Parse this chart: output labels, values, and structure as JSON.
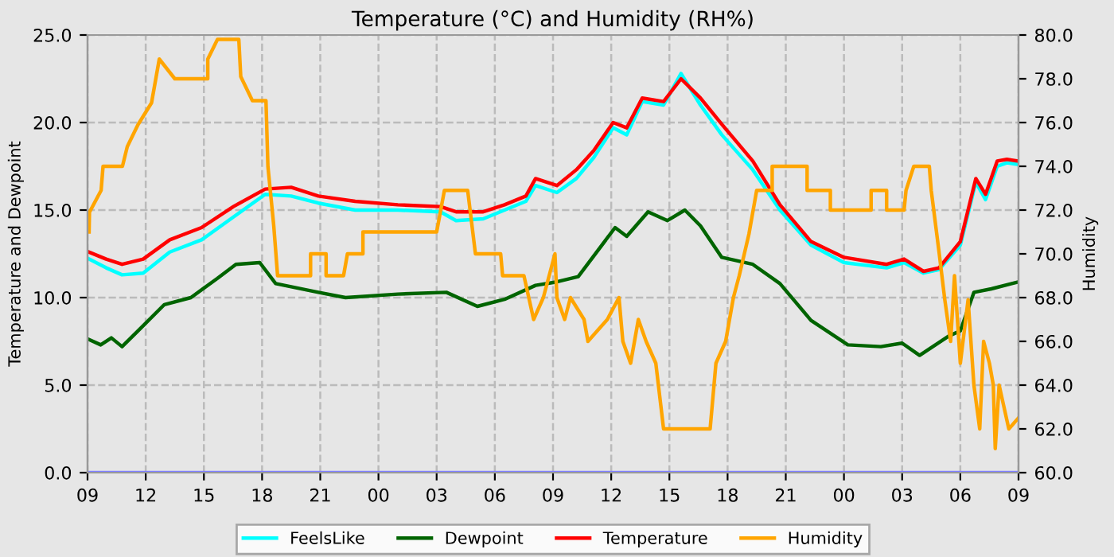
{
  "chart_data": {
    "type": "line",
    "title": "Temperature (°C) and Humidity (RH%)",
    "ylabel": "Temperature and Dewpoint",
    "y2label": "Humidity",
    "xlim": [
      9,
      57
    ],
    "xticks": [
      {
        "value": 9,
        "label": "09"
      },
      12,
      15,
      18,
      21,
      {
        "value": 24,
        "label": "00"
      },
      {
        "value": 27,
        "label": "03"
      },
      {
        "value": 30,
        "label": "06"
      },
      {
        "value": 33,
        "label": "09"
      },
      {
        "value": 36,
        "label": "12"
      },
      {
        "value": 39,
        "label": "15"
      },
      {
        "value": 42,
        "label": "18"
      },
      {
        "value": 45,
        "label": "21"
      },
      {
        "value": 48,
        "label": "00"
      },
      {
        "value": 51,
        "label": "03"
      },
      {
        "value": 54,
        "label": "06"
      },
      {
        "value": 57,
        "label": "09"
      }
    ],
    "ylim": [
      0,
      25
    ],
    "yticks": [
      {
        "value": 0,
        "label": "0.0"
      },
      {
        "value": 5,
        "label": "5.0"
      },
      {
        "value": 10,
        "label": "10.0"
      },
      {
        "value": 15,
        "label": "15.0"
      },
      {
        "value": 20,
        "label": "20.0"
      },
      {
        "value": 25,
        "label": "25.0"
      }
    ],
    "y2lim": [
      60,
      80
    ],
    "y2ticks": [
      {
        "value": 60,
        "label": "60.0"
      },
      {
        "value": 62,
        "label": "62.0"
      },
      {
        "value": 64,
        "label": "64.0"
      },
      {
        "value": 66,
        "label": "66.0"
      },
      {
        "value": 68,
        "label": "68.0"
      },
      {
        "value": 70,
        "label": "70.0"
      },
      {
        "value": 72,
        "label": "72.0"
      },
      {
        "value": 74,
        "label": "74.0"
      },
      {
        "value": 76,
        "label": "76.0"
      },
      {
        "value": 78,
        "label": "78.0"
      },
      {
        "value": 80,
        "label": "80.0"
      }
    ],
    "grid": true,
    "legend": "bottom",
    "line_style": "solid",
    "marker": "none",
    "series": [
      {
        "name": "FeelsLike",
        "color": "#00ffff",
        "x": [
          9.08,
          9.96,
          10.78,
          11.87,
          13.24,
          14.88,
          16.52,
          18.16,
          19.5,
          20.9,
          22.8,
          25.0,
          27.2,
          28.0,
          29.4,
          30.5,
          31.6,
          32.1,
          33.2,
          34.2,
          35.1,
          36.1,
          36.8,
          37.6,
          38.7,
          39.6,
          40.6,
          41.7,
          43.3,
          44.7,
          46.3,
          48.0,
          50.2,
          51.1,
          52.1,
          52.9,
          54.0,
          54.8,
          55.3,
          55.9,
          56.4,
          57
        ],
        "values": [
          12.2,
          11.7,
          11.3,
          11.4,
          12.6,
          13.3,
          14.6,
          15.9,
          15.8,
          15.4,
          15.0,
          15.0,
          14.9,
          14.4,
          14.5,
          15.0,
          15.5,
          16.4,
          16.0,
          16.8,
          18.0,
          19.7,
          19.3,
          21.2,
          21.0,
          22.8,
          21.0,
          19.3,
          17.3,
          15.0,
          13.0,
          12.0,
          11.7,
          12.0,
          11.4,
          11.6,
          13.0,
          16.6,
          15.6,
          17.5,
          17.7,
          17.6
        ]
      },
      {
        "name": "Dewpoint",
        "color": "#006400",
        "x": [
          9.08,
          9.68,
          10.23,
          10.78,
          11.6,
          12.96,
          14.33,
          15.7,
          16.65,
          17.88,
          18.7,
          20.9,
          22.3,
          25.0,
          27.5,
          29.1,
          30.5,
          32.1,
          33.2,
          34.3,
          36.2,
          36.8,
          37.9,
          38.9,
          39.8,
          40.6,
          41.7,
          43.3,
          44.7,
          46.3,
          48.2,
          49.9,
          51.0,
          51.9,
          53.4,
          54.0,
          54.7,
          55.6,
          57
        ],
        "values": [
          7.6,
          7.3,
          7.7,
          7.2,
          8.1,
          9.6,
          10.0,
          11.1,
          11.9,
          12.0,
          10.8,
          10.3,
          10.0,
          10.2,
          10.3,
          9.5,
          9.9,
          10.7,
          10.9,
          11.2,
          14.0,
          13.5,
          14.9,
          14.4,
          15.0,
          14.1,
          12.3,
          11.9,
          10.8,
          8.7,
          7.3,
          7.2,
          7.4,
          6.7,
          7.8,
          8.1,
          10.3,
          10.5,
          10.9
        ]
      },
      {
        "name": "Temperature",
        "color": "#ff0000",
        "x": [
          9.08,
          9.96,
          10.78,
          11.87,
          13.24,
          14.88,
          16.52,
          18.16,
          19.5,
          20.9,
          22.8,
          25.0,
          27.2,
          28.0,
          29.4,
          30.5,
          31.6,
          32.1,
          33.2,
          34.2,
          35.1,
          36.1,
          36.8,
          37.6,
          38.7,
          39.6,
          40.6,
          41.7,
          43.3,
          44.7,
          46.3,
          48.0,
          50.2,
          51.1,
          52.1,
          52.9,
          54.0,
          54.8,
          55.3,
          55.9,
          56.4,
          57
        ],
        "values": [
          12.6,
          12.2,
          11.9,
          12.2,
          13.3,
          14.0,
          15.2,
          16.2,
          16.3,
          15.8,
          15.5,
          15.3,
          15.2,
          14.9,
          14.9,
          15.3,
          15.8,
          16.8,
          16.4,
          17.3,
          18.4,
          20.0,
          19.7,
          21.4,
          21.2,
          22.5,
          21.4,
          19.9,
          17.8,
          15.3,
          13.2,
          12.3,
          11.9,
          12.2,
          11.5,
          11.7,
          13.2,
          16.8,
          15.9,
          17.8,
          17.9,
          17.8
        ]
      },
      {
        "name": "Humidity",
        "color": "#ffa500",
        "axis": "y2",
        "x": [
          9.08,
          9.1,
          9.7,
          9.8,
          10.8,
          11.05,
          11.6,
          12.3,
          12.7,
          13.5,
          15.2,
          15.2,
          15.7,
          16.8,
          16.9,
          17.5,
          18.2,
          18.3,
          18.6,
          18.8,
          20.5,
          20.5,
          21.3,
          21.3,
          22.2,
          22.4,
          23.2,
          23.2,
          27.0,
          27.4,
          28.6,
          29.0,
          30.3,
          30.4,
          31.5,
          32.0,
          32.5,
          32.8,
          33.1,
          33.2,
          33.6,
          33.9,
          34.6,
          34.8,
          35.8,
          36.4,
          36.6,
          37.0,
          37.4,
          37.8,
          38.3,
          38.7,
          41.1,
          41.4,
          41.9,
          42.3,
          42.6,
          43.1,
          43.5,
          44.3,
          44.3,
          46.1,
          46.1,
          47.3,
          47.3,
          49.4,
          49.4,
          50.2,
          50.2,
          51.1,
          51.2,
          51.6,
          52.4,
          52.5,
          52.9,
          53.2,
          53.5,
          53.7,
          54.0,
          54.4,
          54.7,
          55.0,
          55.2,
          55.5,
          55.7,
          55.8,
          56.0,
          56.5,
          57
        ],
        "values": [
          71.0,
          71.9,
          72.9,
          74.0,
          74.0,
          74.9,
          75.9,
          76.9,
          78.9,
          78.0,
          78.0,
          78.9,
          79.8,
          79.8,
          78.1,
          77.0,
          77.0,
          74.0,
          71.3,
          69.0,
          69.0,
          70.0,
          70.0,
          69.0,
          69.0,
          70.0,
          70.0,
          71.0,
          71.0,
          72.9,
          72.9,
          70.0,
          70.0,
          69.0,
          69.0,
          67.0,
          68.0,
          69.0,
          70.0,
          68.0,
          67.0,
          68.0,
          67.0,
          66.0,
          67.0,
          68.0,
          66.0,
          65.0,
          67.0,
          66.0,
          65.0,
          62.0,
          62.0,
          65.0,
          66.0,
          68.0,
          69.0,
          70.9,
          72.9,
          72.9,
          74.0,
          74.0,
          72.9,
          72.9,
          72.0,
          72.0,
          72.9,
          72.9,
          72.0,
          72.0,
          72.9,
          74.0,
          74.0,
          72.9,
          70.1,
          67.9,
          66.0,
          69.0,
          65.0,
          67.9,
          64.0,
          62.0,
          66.0,
          65.0,
          64.0,
          61.1,
          64.0,
          62.0,
          62.5
        ]
      },
      {
        "color": "#7f7fff",
        "x": [
          9,
          57
        ],
        "values": [
          0,
          0
        ]
      }
    ]
  }
}
